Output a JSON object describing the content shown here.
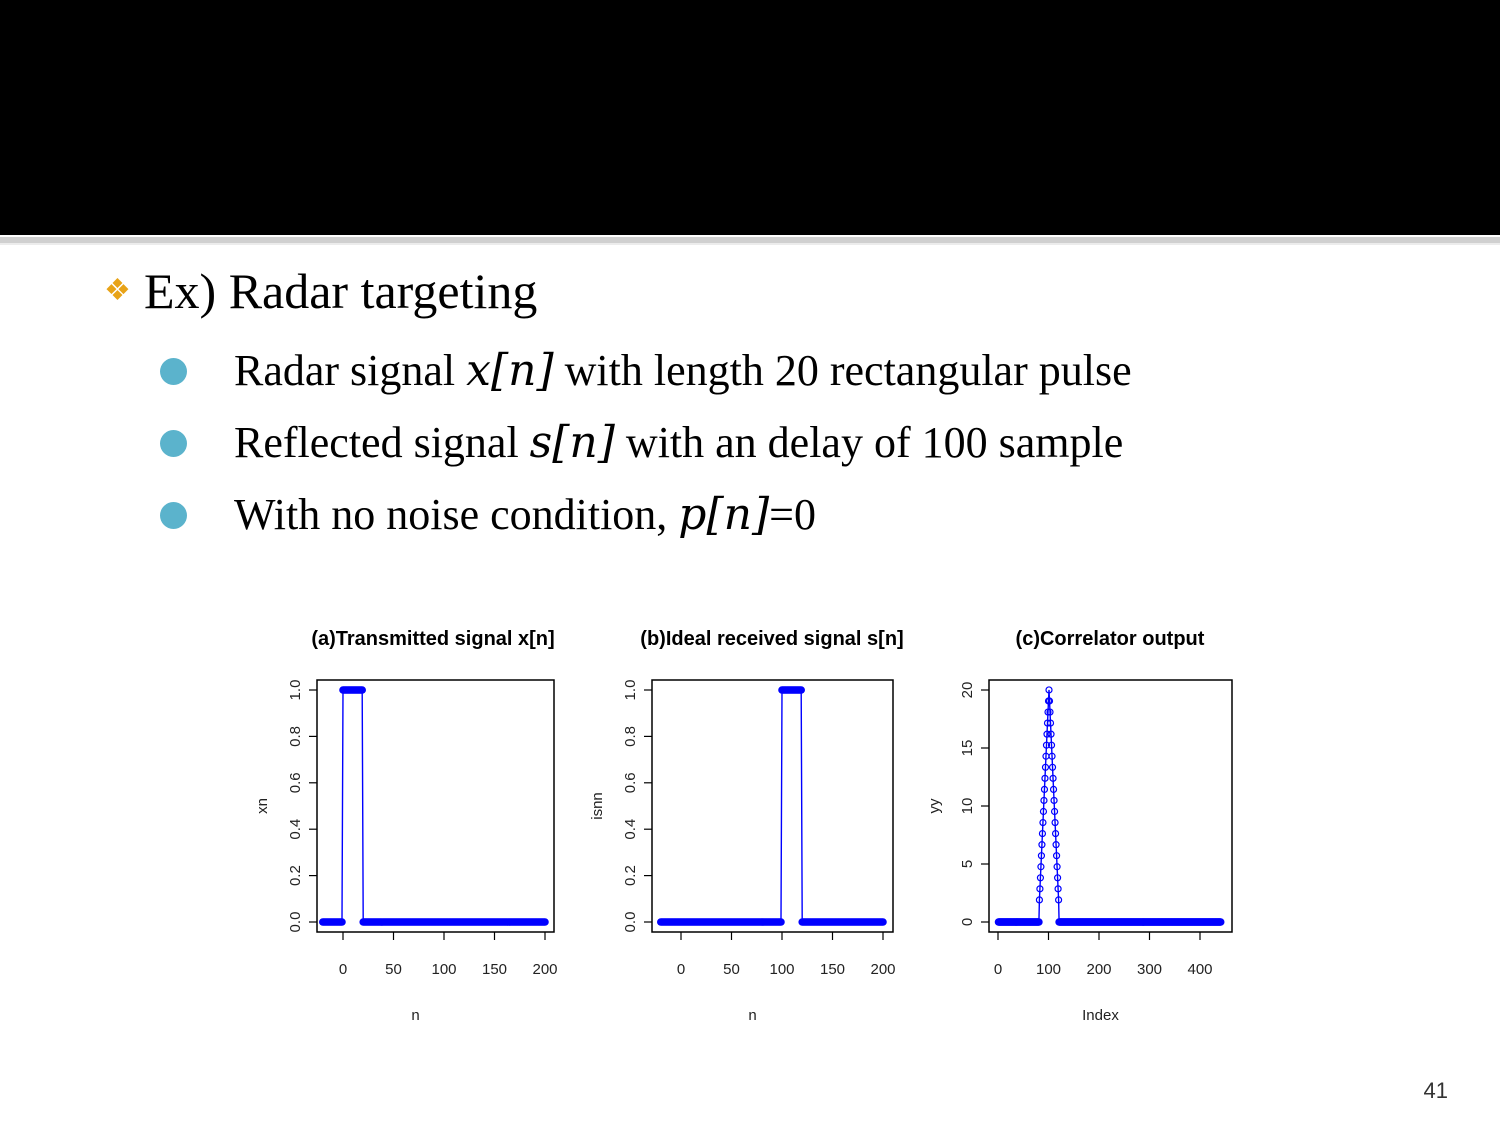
{
  "slide": {
    "main_bullet": "Ex) Radar targeting",
    "bullets": [
      {
        "before": "Radar signal ",
        "math": "x[n]",
        "after": " with length 20 rectangular pulse"
      },
      {
        "before": "Reflected signal ",
        "math": "s[n]",
        "after": " with an delay of 100 sample"
      },
      {
        "before": "With no noise condition, ",
        "math": "p[n]",
        "after": "=0"
      }
    ],
    "page_number": "41",
    "accent_color": "#e8a317",
    "bullet_color": "#5bb3cc"
  },
  "chart_data": [
    {
      "type": "line",
      "title": "(a)Transmitted signal x[n]",
      "xlabel": "n",
      "ylabel": "xn",
      "xlim": [
        -20,
        200
      ],
      "ylim": [
        0,
        1
      ],
      "xticks": [
        0,
        50,
        100,
        150,
        200
      ],
      "yticks": [
        "0.0",
        "0.2",
        "0.4",
        "0.6",
        "0.8",
        "1.0"
      ],
      "pulse": {
        "start": 0,
        "end": 19,
        "value": 1
      },
      "x_range": [
        -20,
        200
      ],
      "color": "#0000ff"
    },
    {
      "type": "line",
      "title": "(b)Ideal received signal s[n]",
      "xlabel": "n",
      "ylabel": "isnn",
      "xlim": [
        -20,
        200
      ],
      "ylim": [
        0,
        1
      ],
      "xticks": [
        0,
        50,
        100,
        150,
        200
      ],
      "yticks": [
        "0.0",
        "0.2",
        "0.4",
        "0.6",
        "0.8",
        "1.0"
      ],
      "pulse": {
        "start": 100,
        "end": 119,
        "value": 1
      },
      "x_range": [
        -20,
        200
      ],
      "color": "#0000ff"
    },
    {
      "type": "line",
      "title": "(c)Correlator output",
      "xlabel": "Index",
      "ylabel": "yy",
      "xlim": [
        1,
        441
      ],
      "ylim": [
        0,
        21
      ],
      "xticks": [
        0,
        100,
        200,
        300,
        400
      ],
      "yticks": [
        "0",
        "5",
        "10",
        "15",
        "20"
      ],
      "triangle": {
        "start": 81,
        "peak": 101,
        "end": 121,
        "peak_value": 21
      },
      "x_range": [
        1,
        441
      ],
      "color": "#0000ff"
    }
  ]
}
